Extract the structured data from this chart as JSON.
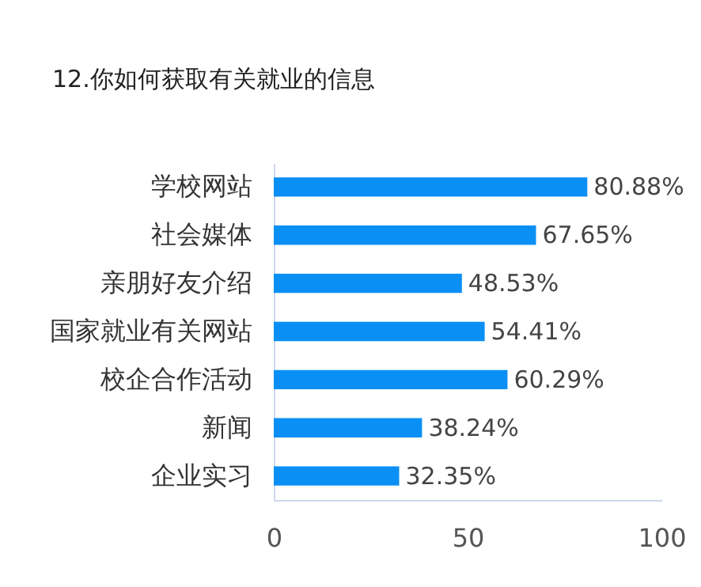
{
  "chart_data": {
    "type": "bar",
    "orientation": "horizontal",
    "title": "12.你如何获取有关就业的信息",
    "categories": [
      "学校网站",
      "社会媒体",
      "亲朋好友介绍",
      "国家就业有关网站",
      "校企合作活动",
      "新闻",
      "企业实习"
    ],
    "values": [
      80.88,
      67.65,
      48.53,
      54.41,
      60.29,
      38.24,
      32.35
    ],
    "value_labels": [
      "80.88%",
      "67.65%",
      "48.53%",
      "54.41%",
      "60.29%",
      "38.24%",
      "32.35%"
    ],
    "color": "#0a8ff5",
    "xlim": [
      0,
      100
    ],
    "xticks": [
      0,
      50,
      100
    ],
    "grid": false
  }
}
